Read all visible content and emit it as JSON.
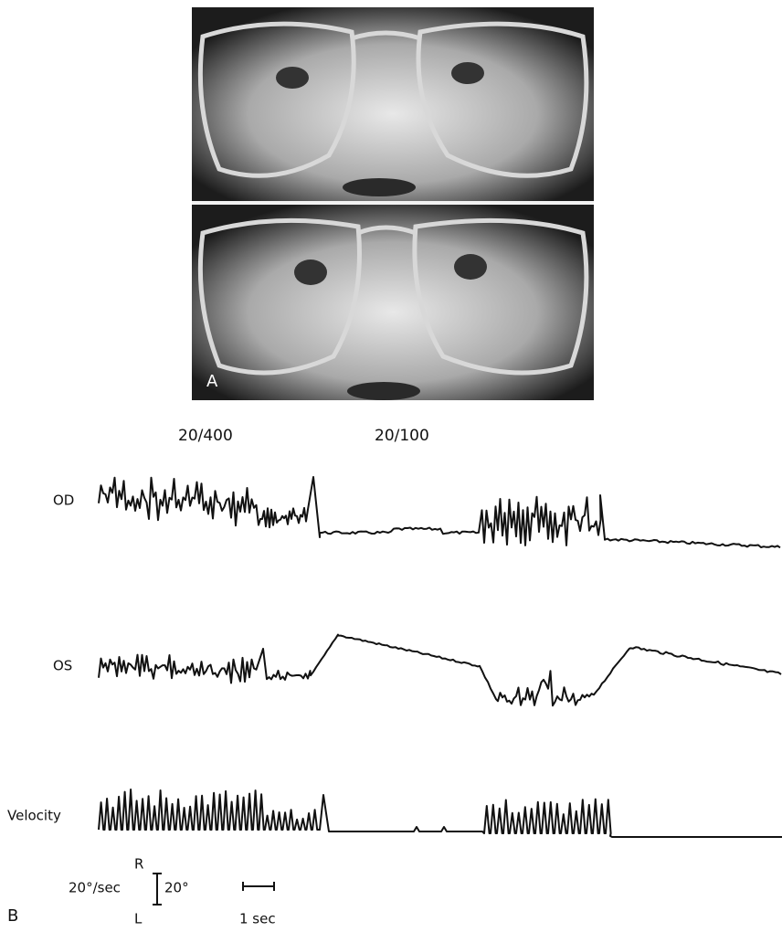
{
  "figure": {
    "panel_a": {
      "label": "A"
    },
    "acuity": [
      "20/400",
      "20/100"
    ],
    "traces": [
      "OD",
      "OS",
      "Velocity"
    ],
    "scale": {
      "right": "R",
      "left": "L",
      "velocity": "20°/sec",
      "position": "20°",
      "time": "1 sec"
    },
    "panel_b": {
      "label": "B"
    }
  }
}
